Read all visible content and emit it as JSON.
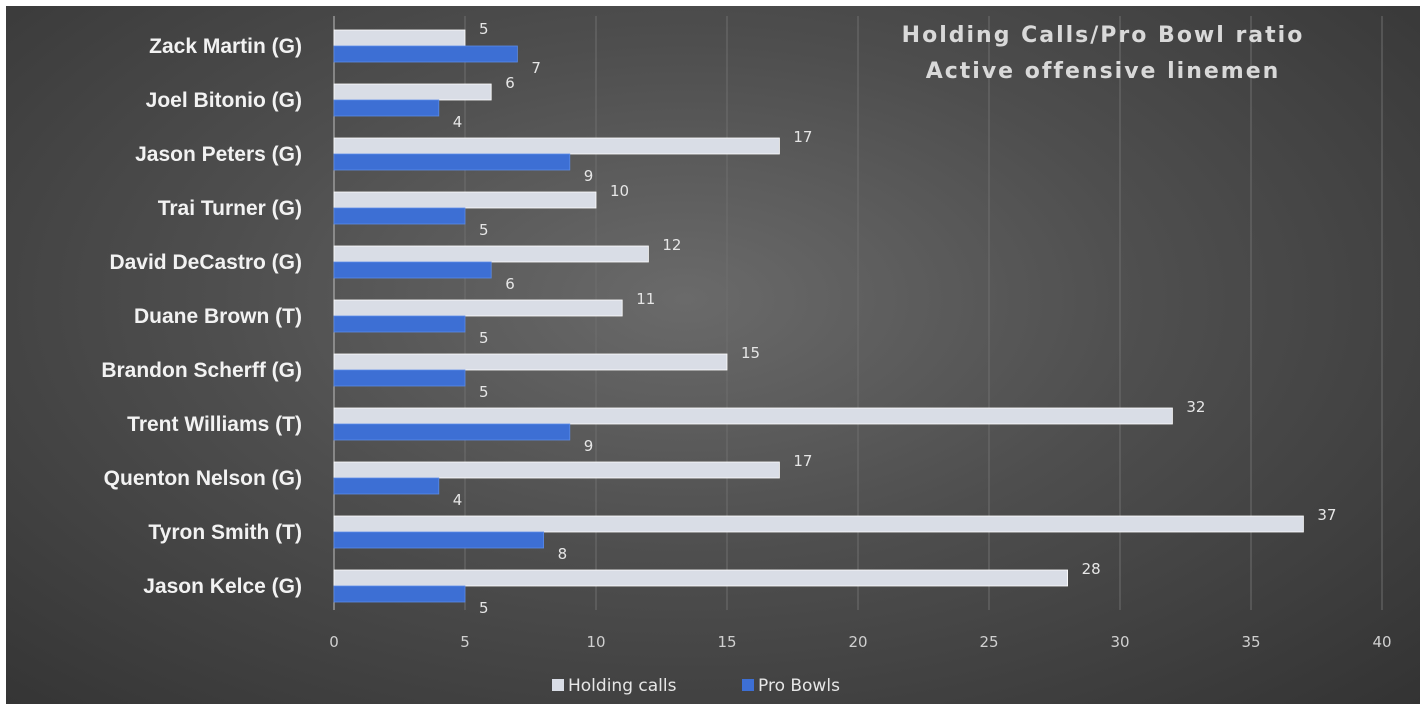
{
  "chart_data": {
    "type": "bar",
    "orientation": "horizontal",
    "title": [
      "Holding Calls/Pro Bowl ratio",
      "Active offensive linemen"
    ],
    "categories": [
      "Zack Martin (G)",
      "Joel Bitonio (G)",
      "Jason Peters (G)",
      "Trai Turner (G)",
      "David DeCastro (G)",
      "Duane Brown (T)",
      "Brandon Scherff (G)",
      "Trent Williams (T)",
      "Quenton Nelson (G)",
      "Tyron Smith (T)",
      "Jason Kelce (G)"
    ],
    "series": [
      {
        "name": "Holding calls",
        "color": "#d9dde6",
        "values": [
          5,
          6,
          17,
          10,
          12,
          11,
          15,
          32,
          17,
          37,
          28
        ]
      },
      {
        "name": "Pro Bowls",
        "color": "#3d6fd4",
        "values": [
          7,
          4,
          9,
          5,
          6,
          5,
          5,
          9,
          4,
          8,
          5
        ]
      }
    ],
    "xlim": [
      0,
      40
    ],
    "xticks": [
      0,
      5,
      10,
      15,
      20,
      25,
      30,
      35,
      40
    ],
    "grid": true,
    "legend_position": "bottom",
    "data_labels": true
  }
}
